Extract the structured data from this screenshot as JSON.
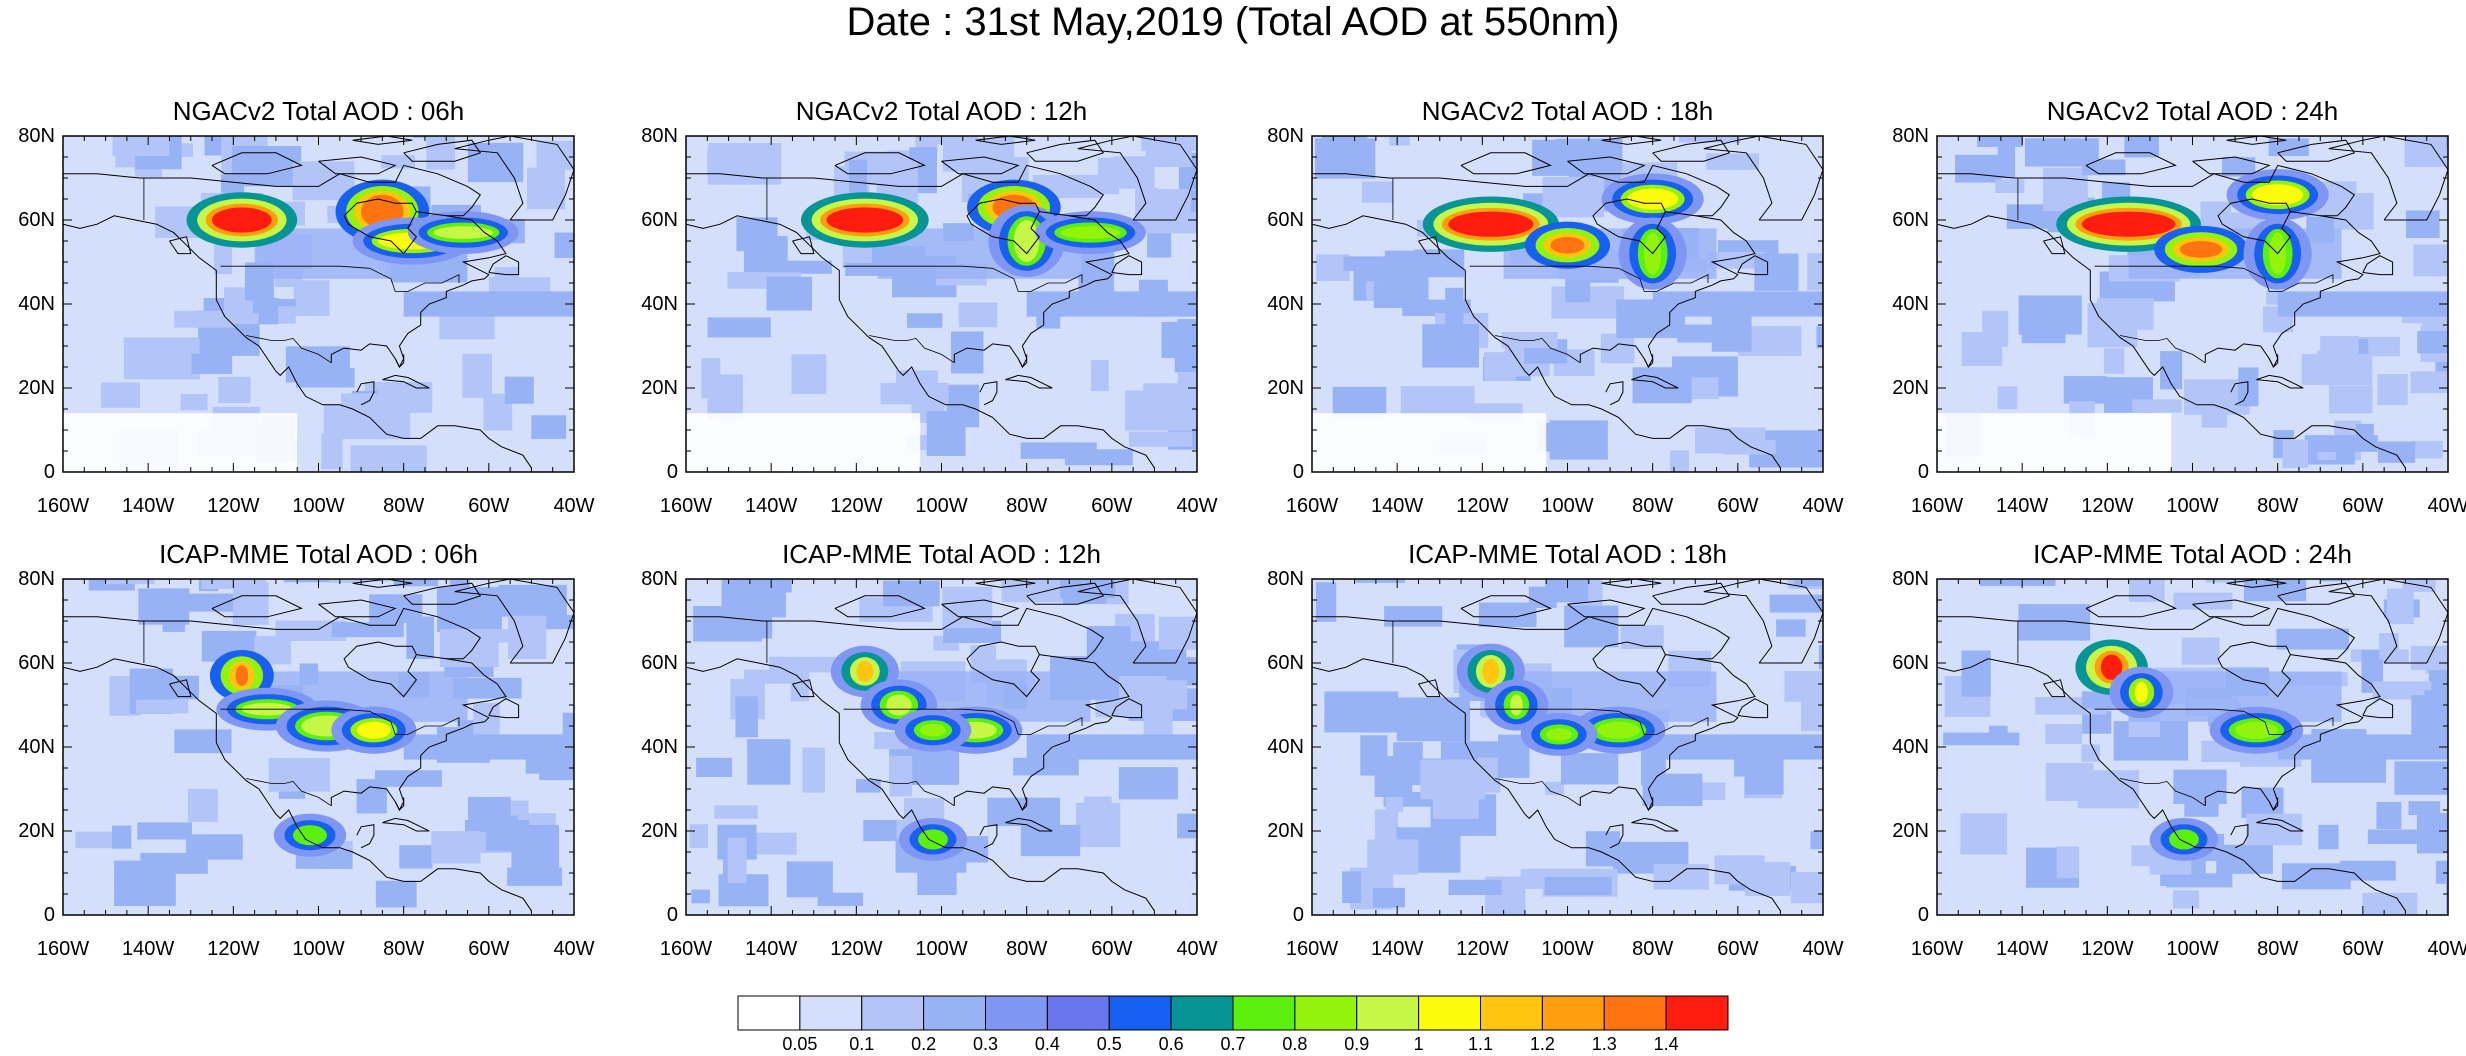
{
  "title": "Date : 31st May,2019 (Total AOD at 550nm)",
  "panels": [
    {
      "title": "NGACv2 Total AOD : 06h",
      "model": "NGACv2",
      "hour": "06h",
      "plumes": [
        {
          "lon": -118,
          "lat": 60,
          "width": 14,
          "height": 6,
          "level": 15
        },
        {
          "lon": -85,
          "lat": 62,
          "width": 10,
          "height": 8,
          "level": 14
        },
        {
          "lon": -78,
          "lat": 55,
          "width": 16,
          "height": 4,
          "level": 11
        },
        {
          "lon": -66,
          "lat": 57,
          "width": 14,
          "height": 3,
          "level": 10
        }
      ]
    },
    {
      "title": "NGACv2 Total AOD : 12h",
      "model": "NGACv2",
      "hour": "12h",
      "plumes": [
        {
          "lon": -118,
          "lat": 60,
          "width": 18,
          "height": 6,
          "level": 15
        },
        {
          "lon": -83,
          "lat": 63,
          "width": 10,
          "height": 6,
          "level": 14
        },
        {
          "lon": -80,
          "lat": 55,
          "width": 6,
          "height": 10,
          "level": 10
        },
        {
          "lon": -65,
          "lat": 57,
          "width": 14,
          "height": 3,
          "level": 9
        }
      ]
    },
    {
      "title": "NGACv2 Total AOD : 18h",
      "model": "NGACv2",
      "hour": "18h",
      "plumes": [
        {
          "lon": -118,
          "lat": 59,
          "width": 20,
          "height": 6,
          "level": 15
        },
        {
          "lon": -100,
          "lat": 54,
          "width": 8,
          "height": 4,
          "level": 14
        },
        {
          "lon": -80,
          "lat": 65,
          "width": 12,
          "height": 5,
          "level": 11
        },
        {
          "lon": -80,
          "lat": 52,
          "width": 4,
          "height": 10,
          "level": 9
        }
      ]
    },
    {
      "title": "NGACv2 Total AOD : 24h",
      "model": "NGACv2",
      "hour": "24h",
      "plumes": [
        {
          "lon": -115,
          "lat": 59,
          "width": 22,
          "height": 6,
          "level": 15
        },
        {
          "lon": -98,
          "lat": 53,
          "width": 10,
          "height": 4,
          "level": 14
        },
        {
          "lon": -80,
          "lat": 66,
          "width": 12,
          "height": 5,
          "level": 11
        },
        {
          "lon": -80,
          "lat": 52,
          "width": 4,
          "height": 10,
          "level": 9
        }
      ]
    },
    {
      "title": "ICAP-MME Total AOD : 06h",
      "model": "ICAP-MME",
      "hour": "06h",
      "plumes": [
        {
          "lon": -118,
          "lat": 57,
          "width": 3,
          "height": 5,
          "level": 14
        },
        {
          "lon": -112,
          "lat": 49,
          "width": 12,
          "height": 3,
          "level": 10
        },
        {
          "lon": -98,
          "lat": 45,
          "width": 12,
          "height": 5,
          "level": 10
        },
        {
          "lon": -87,
          "lat": 44,
          "width": 8,
          "height": 4,
          "level": 11
        },
        {
          "lon": -102,
          "lat": 19,
          "width": 5,
          "height": 3,
          "level": 8
        }
      ]
    },
    {
      "title": "ICAP-MME Total AOD : 12h",
      "model": "ICAP-MME",
      "hour": "12h",
      "plumes": [
        {
          "lon": -118,
          "lat": 58,
          "width": 4,
          "height": 5,
          "level": 12
        },
        {
          "lon": -110,
          "lat": 50,
          "width": 6,
          "height": 5,
          "level": 10
        },
        {
          "lon": -92,
          "lat": 44,
          "width": 10,
          "height": 4,
          "level": 10
        },
        {
          "lon": -102,
          "lat": 44,
          "width": 6,
          "height": 3,
          "level": 9
        },
        {
          "lon": -102,
          "lat": 18,
          "width": 4,
          "height": 3,
          "level": 8
        }
      ]
    },
    {
      "title": "ICAP-MME Total AOD : 18h",
      "model": "ICAP-MME",
      "hour": "18h",
      "plumes": [
        {
          "lon": -118,
          "lat": 58,
          "width": 4,
          "height": 6,
          "level": 12
        },
        {
          "lon": -112,
          "lat": 50,
          "width": 3,
          "height": 5,
          "level": 10
        },
        {
          "lon": -88,
          "lat": 44,
          "width": 10,
          "height": 4,
          "level": 9
        },
        {
          "lon": -102,
          "lat": 43,
          "width": 6,
          "height": 3,
          "level": 9
        }
      ]
    },
    {
      "title": "ICAP-MME Total AOD : 24h",
      "model": "ICAP-MME",
      "hour": "24h",
      "plumes": [
        {
          "lon": -119,
          "lat": 59,
          "width": 5,
          "height": 6,
          "level": 15
        },
        {
          "lon": -112,
          "lat": 53,
          "width": 3,
          "height": 5,
          "level": 11
        },
        {
          "lon": -85,
          "lat": 44,
          "width": 10,
          "height": 4,
          "level": 9
        },
        {
          "lon": -102,
          "lat": 18,
          "width": 4,
          "height": 3,
          "level": 8
        }
      ]
    }
  ],
  "axes": {
    "lon_range": [
      -160,
      -40
    ],
    "lat_range": [
      0,
      80
    ],
    "lon_ticks": [
      "160W",
      "140W",
      "120W",
      "100W",
      "80W",
      "60W",
      "40W"
    ],
    "lat_ticks": [
      "0",
      "20N",
      "40N",
      "60N",
      "80N"
    ]
  },
  "colorbar": {
    "labels": [
      "0.05",
      "0.1",
      "0.2",
      "0.3",
      "0.4",
      "0.5",
      "0.6",
      "0.7",
      "0.8",
      "0.9",
      "1",
      "1.1",
      "1.2",
      "1.3",
      "1.4"
    ],
    "colors": [
      "#ffffff",
      "#d4dffc",
      "#b2c4f8",
      "#98b2f6",
      "#7f96f2",
      "#6a76ee",
      "#1760f0",
      "#079494",
      "#5cf00e",
      "#93f30c",
      "#c6f646",
      "#fdfb0c",
      "#ffc50f",
      "#ff9e0e",
      "#ff7411",
      "#fe1d0e"
    ]
  }
}
